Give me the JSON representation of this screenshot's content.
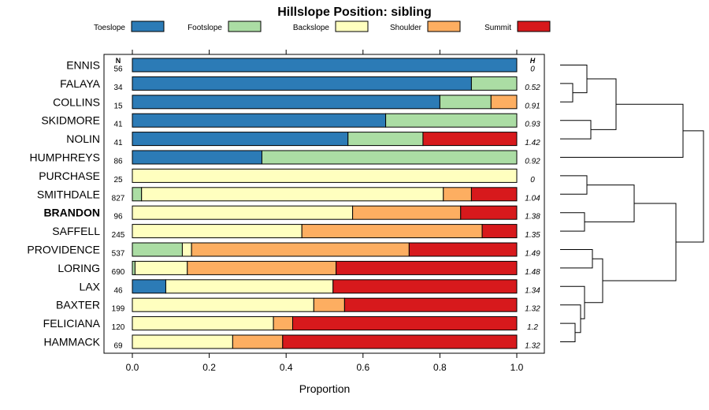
{
  "chart_data": {
    "type": "bar",
    "orientation": "horizontal",
    "stacked": true,
    "title": "Hillslope Position: sibling",
    "xlabel": "Proportion",
    "ylabel": "",
    "xlim": [
      0,
      1
    ],
    "x_ticks": [
      "0.0",
      "0.2",
      "0.4",
      "0.6",
      "0.8",
      "1.0"
    ],
    "legend_position": "top",
    "series": [
      {
        "name": "Toeslope",
        "color": "#2C7BB6"
      },
      {
        "name": "Footslope",
        "color": "#ABDDA4"
      },
      {
        "name": "Backslope",
        "color": "#FFFFBF"
      },
      {
        "name": "Shoulder",
        "color": "#FDAE61"
      },
      {
        "name": "Summit",
        "color": "#D7191C"
      }
    ],
    "n_header": "N",
    "h_header": "H",
    "rows": [
      {
        "name": "ENNIS",
        "bold": false,
        "n": "56",
        "h": "0",
        "values": [
          1.0,
          0.0,
          0.0,
          0.0,
          0.0
        ]
      },
      {
        "name": "FALAYA",
        "bold": false,
        "n": "34",
        "h": "0.52",
        "values": [
          0.882,
          0.118,
          0.0,
          0.0,
          0.0
        ]
      },
      {
        "name": "COLLINS",
        "bold": false,
        "n": "15",
        "h": "0.91",
        "values": [
          0.8,
          0.133,
          0.0,
          0.067,
          0.0
        ]
      },
      {
        "name": "SKIDMORE",
        "bold": false,
        "n": "41",
        "h": "0.93",
        "values": [
          0.659,
          0.341,
          0.0,
          0.0,
          0.0
        ]
      },
      {
        "name": "NOLIN",
        "bold": false,
        "n": "41",
        "h": "1.42",
        "values": [
          0.561,
          0.195,
          0.0,
          0.0,
          0.244
        ]
      },
      {
        "name": "HUMPHREYS",
        "bold": false,
        "n": "86",
        "h": "0.92",
        "values": [
          0.337,
          0.663,
          0.0,
          0.0,
          0.0
        ]
      },
      {
        "name": "PURCHASE",
        "bold": false,
        "n": "25",
        "h": "0",
        "values": [
          0.0,
          0.0,
          1.0,
          0.0,
          0.0
        ]
      },
      {
        "name": "SMITHDALE",
        "bold": false,
        "n": "827",
        "h": "1.04",
        "values": [
          0.0,
          0.024,
          0.785,
          0.073,
          0.118
        ]
      },
      {
        "name": "BRANDON",
        "bold": true,
        "n": "96",
        "h": "1.38",
        "values": [
          0.0,
          0.0,
          0.573,
          0.281,
          0.146
        ]
      },
      {
        "name": "SAFFELL",
        "bold": false,
        "n": "245",
        "h": "1.35",
        "values": [
          0.0,
          0.0,
          0.441,
          0.469,
          0.09
        ]
      },
      {
        "name": "PROVIDENCE",
        "bold": false,
        "n": "537",
        "h": "1.49",
        "values": [
          0.0,
          0.13,
          0.024,
          0.566,
          0.28
        ]
      },
      {
        "name": "LORING",
        "bold": false,
        "n": "690",
        "h": "1.48",
        "values": [
          0.0,
          0.007,
          0.136,
          0.387,
          0.47
        ]
      },
      {
        "name": "LAX",
        "bold": false,
        "n": "46",
        "h": "1.34",
        "values": [
          0.087,
          0.0,
          0.435,
          0.0,
          0.478
        ]
      },
      {
        "name": "BAXTER",
        "bold": false,
        "n": "199",
        "h": "1.32",
        "values": [
          0.0,
          0.0,
          0.472,
          0.08,
          0.448
        ]
      },
      {
        "name": "FELICIANA",
        "bold": false,
        "n": "120",
        "h": "1.2",
        "values": [
          0.0,
          0.0,
          0.367,
          0.05,
          0.583
        ]
      },
      {
        "name": "HAMMACK",
        "bold": false,
        "n": "69",
        "h": "1.32",
        "values": [
          0.0,
          0.0,
          0.261,
          0.13,
          0.609
        ]
      }
    ]
  }
}
